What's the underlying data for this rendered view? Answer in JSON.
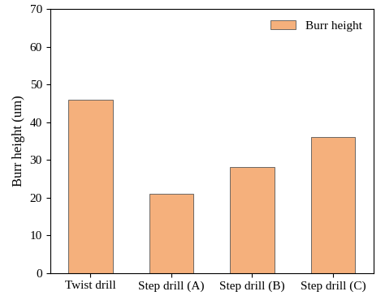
{
  "chart_data": {
    "type": "bar",
    "categories": [
      "Twist drill",
      "Step drill (A)",
      "Step drill (B)",
      "Step drill (C)"
    ],
    "series": [
      {
        "name": "Burr height",
        "color": "#f5b07c",
        "values": [
          46,
          21,
          28,
          36
        ]
      }
    ],
    "y_label": "Burr height (um)",
    "ylim": [
      0,
      70
    ],
    "yticks": [
      0,
      10,
      20,
      30,
      40,
      50,
      60,
      70
    ],
    "legend": "upper right",
    "grid": false
  }
}
